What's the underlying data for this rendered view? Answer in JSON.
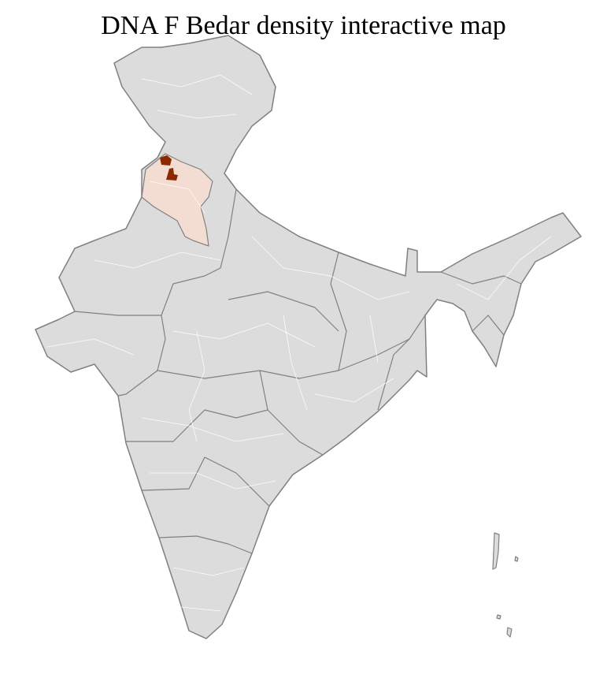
{
  "title": "DNA F Bedar density interactive map",
  "map": {
    "region": "India districts",
    "colors": {
      "base_fill": "#dcdcdc",
      "state_border": "#808080",
      "district_border": "#ffffff",
      "low_density": "#f3dcd2",
      "high_density": "#8b2a00"
    },
    "highlighted_areas": [
      {
        "level": "low",
        "area": "Punjab / Haryana / Delhi districts"
      },
      {
        "level": "high",
        "area": "Northern Punjab districts"
      }
    ]
  }
}
